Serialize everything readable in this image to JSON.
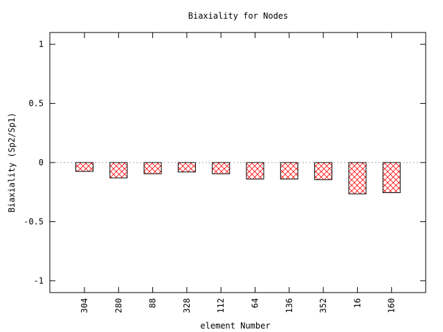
{
  "chart_data": {
    "type": "bar",
    "title": "Biaxiality for Nodes",
    "xlabel": "element Number",
    "ylabel": "Biaxiality (Sp2/Sp1)",
    "categories": [
      "304",
      "280",
      "88",
      "328",
      "112",
      "64",
      "136",
      "352",
      "16",
      "160"
    ],
    "series": [
      {
        "values": [
          -0.075,
          -0.13,
          -0.095,
          -0.08,
          -0.095,
          -0.14,
          -0.14,
          -0.145,
          -0.265,
          -0.255
        ]
      }
    ],
    "ylim": [
      -1.1,
      1.1
    ],
    "yticks": [
      {
        "value": 1,
        "label": "1"
      },
      {
        "value": 0.5,
        "label": "0.5"
      },
      {
        "value": 0,
        "label": "0"
      },
      {
        "value": -0.5,
        "label": "-0.5"
      },
      {
        "value": -1,
        "label": "-1"
      }
    ],
    "zero_line": "dotted",
    "grid": false,
    "legend": "none",
    "bar_fill_pattern": "crosshatch",
    "colors": {
      "bar_edge": "#000000",
      "hatch": "#ff0000",
      "axes": "#000000",
      "zero_line": "#a0a0a0",
      "background": "#ffffff"
    }
  }
}
